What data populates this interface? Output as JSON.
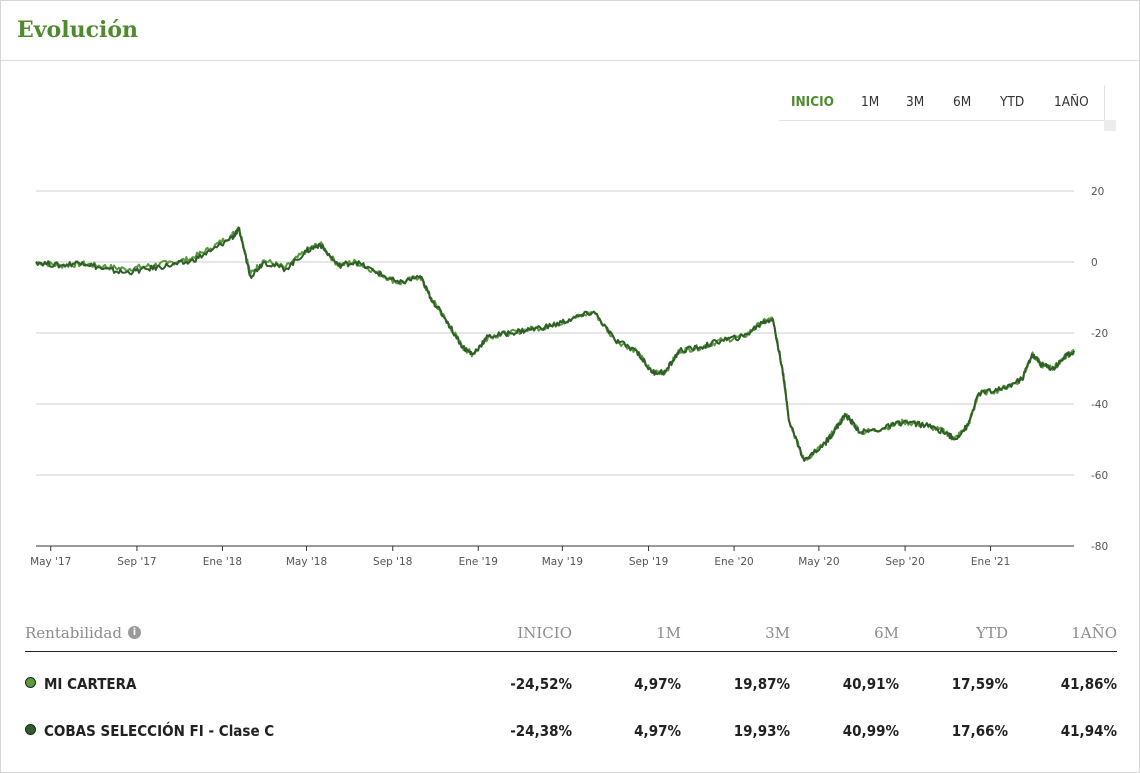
{
  "widget": {
    "title": "Evolución"
  },
  "range_selector": {
    "buttons": [
      {
        "label": "INICIO",
        "active": true
      },
      {
        "label": "1M",
        "active": false
      },
      {
        "label": "3M",
        "active": false
      },
      {
        "label": "6M",
        "active": false
      },
      {
        "label": "YTD",
        "active": false
      },
      {
        "label": "1AÑO",
        "active": false
      }
    ]
  },
  "chart_data": {
    "type": "line",
    "title": "",
    "xlabel": "",
    "ylabel": "",
    "x_tick_labels": [
      "May '17",
      "Sep '17",
      "Ene '18",
      "May '18",
      "Sep '18",
      "Ene '19",
      "May '19",
      "Sep '19",
      "Ene '20",
      "May '20",
      "Sep '20",
      "Ene '21"
    ],
    "y_ticks": [
      20,
      0,
      -20,
      -40,
      -60,
      -80
    ],
    "ylim": [
      -80,
      20
    ],
    "xlim": [
      "2017-04-10",
      "2021-04-30"
    ],
    "grid": true,
    "y_axis_side": "right",
    "series": [
      {
        "name": "COBAS SELECCIÓN FI - Clase C",
        "color": "#2f5e28",
        "x": [
          "2017-04-10",
          "2017-05-15",
          "2017-06-15",
          "2017-07-15",
          "2017-08-15",
          "2017-09-15",
          "2017-10-15",
          "2017-11-15",
          "2017-12-15",
          "2018-01-15",
          "2018-01-25",
          "2018-02-10",
          "2018-03-01",
          "2018-04-01",
          "2018-05-01",
          "2018-05-20",
          "2018-06-15",
          "2018-07-10",
          "2018-08-10",
          "2018-09-10",
          "2018-10-10",
          "2018-10-25",
          "2018-11-15",
          "2018-12-10",
          "2018-12-24",
          "2019-01-15",
          "2019-02-15",
          "2019-03-15",
          "2019-04-15",
          "2019-05-15",
          "2019-06-15",
          "2019-07-15",
          "2019-08-15",
          "2019-09-05",
          "2019-09-25",
          "2019-10-15",
          "2019-11-15",
          "2019-12-15",
          "2020-01-15",
          "2020-02-10",
          "2020-02-25",
          "2020-03-10",
          "2020-03-20",
          "2020-04-10",
          "2020-05-10",
          "2020-05-25",
          "2020-06-08",
          "2020-06-30",
          "2020-07-30",
          "2020-08-30",
          "2020-09-30",
          "2020-10-30",
          "2020-11-10",
          "2020-11-30",
          "2020-12-15",
          "2021-01-15",
          "2021-02-15",
          "2021-03-01",
          "2021-03-15",
          "2021-04-01",
          "2021-04-15",
          "2021-04-30"
        ],
        "values": [
          0,
          -1,
          0,
          -2,
          -3,
          -2,
          -1,
          0,
          3,
          7,
          9,
          -4,
          0,
          -2,
          3,
          5,
          -1,
          0,
          -3,
          -6,
          -4,
          -10,
          -16,
          -24,
          -26,
          -21,
          -20,
          -19,
          -18,
          -16,
          -14,
          -22,
          -25,
          -31,
          -31,
          -25,
          -24,
          -22,
          -21,
          -17,
          -16,
          -30,
          -45,
          -56,
          -51,
          -47,
          -43,
          -48,
          -47,
          -45,
          -46,
          -48,
          -50,
          -46,
          -37,
          -36,
          -33,
          -26,
          -29,
          -30,
          -27,
          -25
        ]
      },
      {
        "name": "MI CARTERA",
        "color": "#5a9a3c",
        "x": [
          "2017-04-10",
          "2017-05-15",
          "2017-06-15",
          "2017-07-15",
          "2017-08-15",
          "2017-09-15",
          "2017-10-15",
          "2017-11-15",
          "2017-12-15",
          "2018-01-15",
          "2018-01-25",
          "2018-02-10",
          "2018-03-01",
          "2018-04-01",
          "2018-05-01",
          "2018-05-20",
          "2018-06-15",
          "2018-07-10",
          "2018-08-10",
          "2018-09-10",
          "2018-10-10",
          "2018-10-25",
          "2018-11-15",
          "2018-12-10",
          "2018-12-24",
          "2019-01-15",
          "2019-02-15",
          "2019-03-15",
          "2019-04-15",
          "2019-05-15",
          "2019-06-15",
          "2019-07-15",
          "2019-08-15",
          "2019-09-05",
          "2019-09-25",
          "2019-10-15",
          "2019-11-15",
          "2019-12-15",
          "2020-01-15",
          "2020-02-10",
          "2020-02-25",
          "2020-03-10",
          "2020-03-20",
          "2020-04-10",
          "2020-05-10",
          "2020-05-25",
          "2020-06-08",
          "2020-06-30",
          "2020-07-30",
          "2020-08-30",
          "2020-09-30",
          "2020-10-30",
          "2020-11-10",
          "2020-11-30",
          "2020-12-15",
          "2021-01-15",
          "2021-02-15",
          "2021-03-01",
          "2021-03-15",
          "2021-04-01",
          "2021-04-15",
          "2021-04-30"
        ],
        "values": [
          0,
          -1,
          -0.5,
          -1.2,
          -2,
          -1.2,
          -0.3,
          0.8,
          3.8,
          7.7,
          9.6,
          -3.4,
          0.5,
          -1.6,
          3.3,
          5.2,
          -0.9,
          0.1,
          -3,
          -6,
          -4,
          -10,
          -16,
          -24,
          -26,
          -21,
          -20,
          -19,
          -18,
          -16,
          -14,
          -22,
          -25,
          -31,
          -31,
          -25,
          -24,
          -22,
          -21,
          -17,
          -16,
          -30,
          -45,
          -56,
          -51,
          -47,
          -43,
          -48,
          -47,
          -45,
          -46,
          -48,
          -50,
          -46,
          -37,
          -36,
          -33,
          -26,
          -29,
          -30,
          -27,
          -25
        ]
      }
    ]
  },
  "returns_table": {
    "header": {
      "label": "Rentabilidad",
      "columns": [
        "INICIO",
        "1M",
        "3M",
        "6M",
        "YTD",
        "1AÑO"
      ]
    },
    "rows": [
      {
        "name": "MI CARTERA",
        "dot_color": "#5a9a3c",
        "values": [
          "-24,52%",
          "4,97%",
          "19,87%",
          "40,91%",
          "17,59%",
          "41,86%"
        ]
      },
      {
        "name": "COBAS SELECCIÓN FI - Clase C",
        "dot_color": "#2f5e28",
        "values": [
          "-24,38%",
          "4,97%",
          "19,93%",
          "40,99%",
          "17,66%",
          "41,94%"
        ]
      }
    ]
  }
}
